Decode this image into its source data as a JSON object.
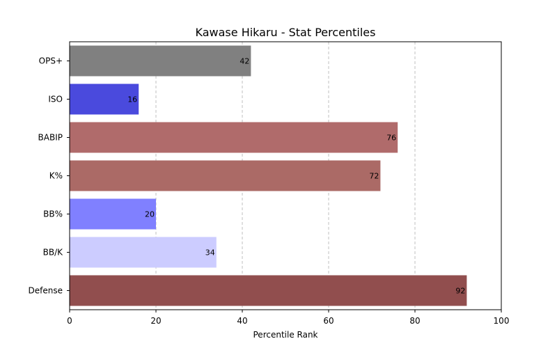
{
  "chart_data": {
    "type": "bar",
    "orientation": "horizontal",
    "title": "Kawase Hikaru - Stat Percentiles",
    "xlabel": "Percentile Rank",
    "ylabel": "",
    "xlim": [
      0,
      100
    ],
    "xticks": [
      0,
      20,
      40,
      60,
      80,
      100
    ],
    "grid": "x-dashed",
    "categories": [
      "OPS+",
      "ISO",
      "BABIP",
      "K%",
      "BB%",
      "BB/K",
      "Defense"
    ],
    "values": [
      42,
      16,
      76,
      72,
      20,
      34,
      92
    ],
    "colors": [
      "#808080",
      "#4a4add",
      "#b06b6b",
      "#ab6a66",
      "#8080ff",
      "#ccccff",
      "#914e4e"
    ]
  }
}
